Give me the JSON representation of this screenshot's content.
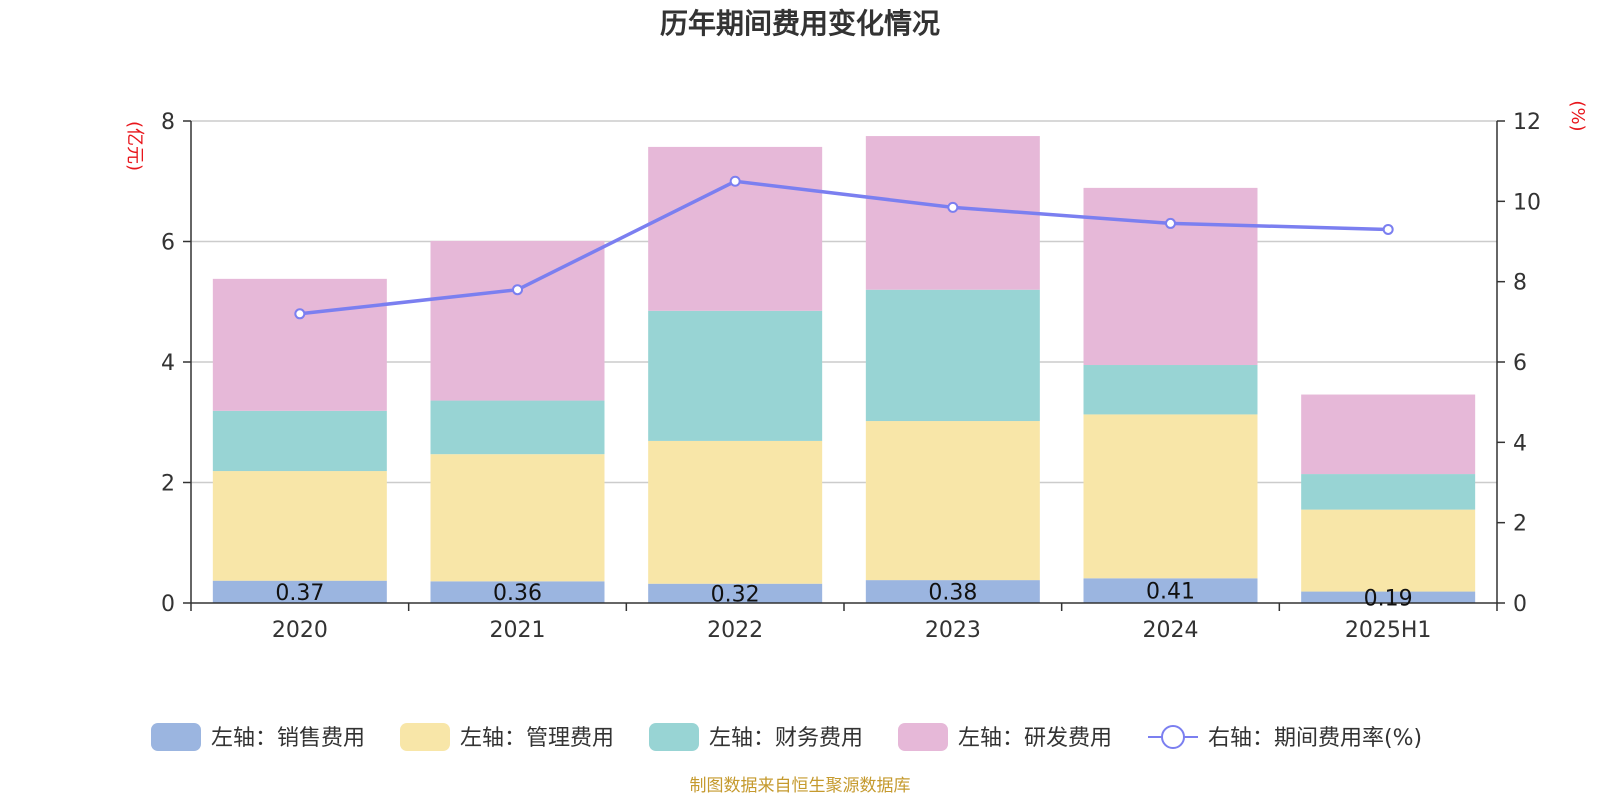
{
  "chart_data": {
    "type": "bar",
    "title": "历年期间费用变化情况",
    "left_unit": "(亿元)",
    "right_unit": "(%)",
    "categories": [
      "2020",
      "2021",
      "2022",
      "2023",
      "2024",
      "2025H1"
    ],
    "ylim_left": [
      0,
      8
    ],
    "yticks_left": [
      0,
      2,
      4,
      6,
      8
    ],
    "ylim_right": [
      0,
      12
    ],
    "yticks_right": [
      0,
      2,
      4,
      6,
      8,
      10,
      12
    ],
    "grid": true,
    "stacked": true,
    "series": [
      {
        "name": "左轴：销售费用",
        "axis": "left",
        "type": "bar",
        "color": "#9bb5e0",
        "values": [
          0.37,
          0.36,
          0.32,
          0.38,
          0.41,
          0.19
        ],
        "show_labels": true
      },
      {
        "name": "左轴：管理费用",
        "axis": "left",
        "type": "bar",
        "color": "#f8e6a8",
        "values": [
          1.82,
          2.11,
          2.37,
          2.64,
          2.72,
          1.36
        ],
        "show_labels": false
      },
      {
        "name": "左轴：财务费用",
        "axis": "left",
        "type": "bar",
        "color": "#98d4d4",
        "values": [
          1.0,
          0.89,
          2.16,
          2.18,
          0.82,
          0.59
        ],
        "show_labels": false
      },
      {
        "name": "左轴：研发费用",
        "axis": "left",
        "type": "bar",
        "color": "#e6b8d8",
        "values": [
          2.19,
          2.65,
          2.72,
          2.55,
          2.94,
          1.32
        ],
        "show_labels": false
      },
      {
        "name": "右轴：期间费用率(%)",
        "axis": "right",
        "type": "line",
        "color": "#7b7ff0",
        "values": [
          7.2,
          7.8,
          10.5,
          9.85,
          9.45,
          9.3
        ],
        "show_labels": false
      }
    ],
    "legend_position": "bottom",
    "source": "制图数据来自恒生聚源数据库"
  }
}
